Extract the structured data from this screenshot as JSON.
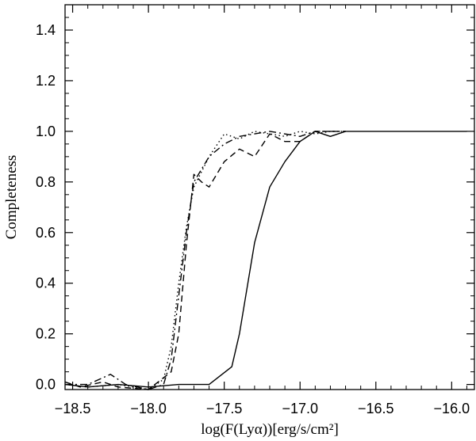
{
  "chart_data": {
    "type": "line",
    "xlabel": "log(F(Lyα))[erg/s/cm²]",
    "ylabel": "Completeness",
    "xlim": [
      -18.55,
      -15.85
    ],
    "ylim": [
      -0.02,
      1.5
    ],
    "x_ticks": [
      -18.5,
      -18.0,
      -17.5,
      -17.0,
      -16.5,
      -16.0
    ],
    "x_tick_labels": [
      "−18.5",
      "−18.0",
      "−17.5",
      "−17.0",
      "−16.5",
      "−16.0"
    ],
    "y_ticks": [
      0.0,
      0.2,
      0.4,
      0.6,
      0.8,
      1.0,
      1.2,
      1.4
    ],
    "y_tick_labels": [
      "0.0",
      "0.2",
      "0.4",
      "0.6",
      "0.8",
      "1.0",
      "1.2",
      "1.4"
    ],
    "grid": false,
    "series": [
      {
        "style": "solid",
        "points": [
          [
            -18.55,
            0.0
          ],
          [
            -18.4,
            -0.01
          ],
          [
            -18.2,
            0.0
          ],
          [
            -18.0,
            -0.01
          ],
          [
            -17.8,
            0.0
          ],
          [
            -17.6,
            0.0
          ],
          [
            -17.45,
            0.07
          ],
          [
            -17.4,
            0.2
          ],
          [
            -17.3,
            0.56
          ],
          [
            -17.2,
            0.78
          ],
          [
            -17.1,
            0.88
          ],
          [
            -17.0,
            0.96
          ],
          [
            -16.9,
            1.0
          ],
          [
            -16.8,
            0.98
          ],
          [
            -16.7,
            1.0
          ],
          [
            -16.6,
            1.0
          ],
          [
            -15.9,
            1.0
          ]
        ]
      },
      {
        "style": "dashed",
        "points": [
          [
            -18.55,
            0.01
          ],
          [
            -18.45,
            -0.01
          ],
          [
            -18.3,
            0.01
          ],
          [
            -18.2,
            -0.01
          ],
          [
            -18.0,
            -0.02
          ],
          [
            -17.85,
            0.05
          ],
          [
            -17.8,
            0.2
          ],
          [
            -17.75,
            0.55
          ],
          [
            -17.7,
            0.83
          ],
          [
            -17.65,
            0.8
          ],
          [
            -17.6,
            0.78
          ],
          [
            -17.5,
            0.88
          ],
          [
            -17.4,
            0.93
          ],
          [
            -17.3,
            0.9
          ],
          [
            -17.2,
            0.99
          ],
          [
            -17.1,
            0.96
          ],
          [
            -17.0,
            0.96
          ],
          [
            -16.9,
            1.0
          ],
          [
            -16.8,
            1.0
          ],
          [
            -16.7,
            1.0
          ]
        ]
      },
      {
        "style": "dotted",
        "points": [
          [
            -18.55,
            0.0
          ],
          [
            -18.4,
            -0.01
          ],
          [
            -18.2,
            0.0
          ],
          [
            -18.0,
            -0.02
          ],
          [
            -17.9,
            0.02
          ],
          [
            -17.85,
            0.15
          ],
          [
            -17.8,
            0.4
          ],
          [
            -17.75,
            0.62
          ],
          [
            -17.7,
            0.78
          ],
          [
            -17.6,
            0.9
          ],
          [
            -17.5,
            0.99
          ],
          [
            -17.4,
            0.97
          ],
          [
            -17.3,
            1.0
          ],
          [
            -17.2,
            0.99
          ],
          [
            -17.1,
            0.98
          ],
          [
            -17.0,
            1.0
          ],
          [
            -16.9,
            0.99
          ],
          [
            -16.8,
            1.0
          ],
          [
            -16.7,
            1.0
          ]
        ]
      },
      {
        "style": "dash-dot",
        "points": [
          [
            -18.55,
            0.0
          ],
          [
            -18.4,
            0.0
          ],
          [
            -18.25,
            0.04
          ],
          [
            -18.15,
            0.0
          ],
          [
            -18.0,
            -0.02
          ],
          [
            -17.9,
            0.0
          ],
          [
            -17.85,
            0.1
          ],
          [
            -17.8,
            0.35
          ],
          [
            -17.75,
            0.6
          ],
          [
            -17.7,
            0.8
          ],
          [
            -17.6,
            0.9
          ],
          [
            -17.5,
            0.95
          ],
          [
            -17.4,
            0.98
          ],
          [
            -17.3,
            0.99
          ],
          [
            -17.2,
            1.0
          ],
          [
            -17.0,
            0.98
          ],
          [
            -16.9,
            1.0
          ],
          [
            -16.7,
            1.0
          ]
        ]
      }
    ]
  }
}
